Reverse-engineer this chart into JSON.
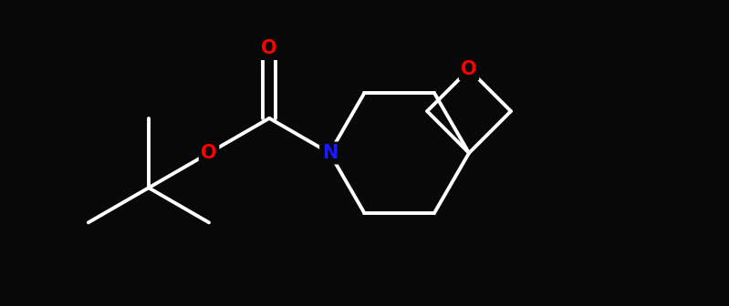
{
  "bg_color": "#080808",
  "atom_colors": {
    "C": "#ffffff",
    "N": "#1a1aff",
    "O": "#ff0000"
  },
  "bond_color": "#ffffff",
  "bond_width": 2.8,
  "font_size_atom": 15,
  "figsize": [
    7.99,
    3.36
  ],
  "dpi": 100,
  "xlim": [
    -4.5,
    5.5
  ],
  "ylim": [
    -2.2,
    2.2
  ]
}
